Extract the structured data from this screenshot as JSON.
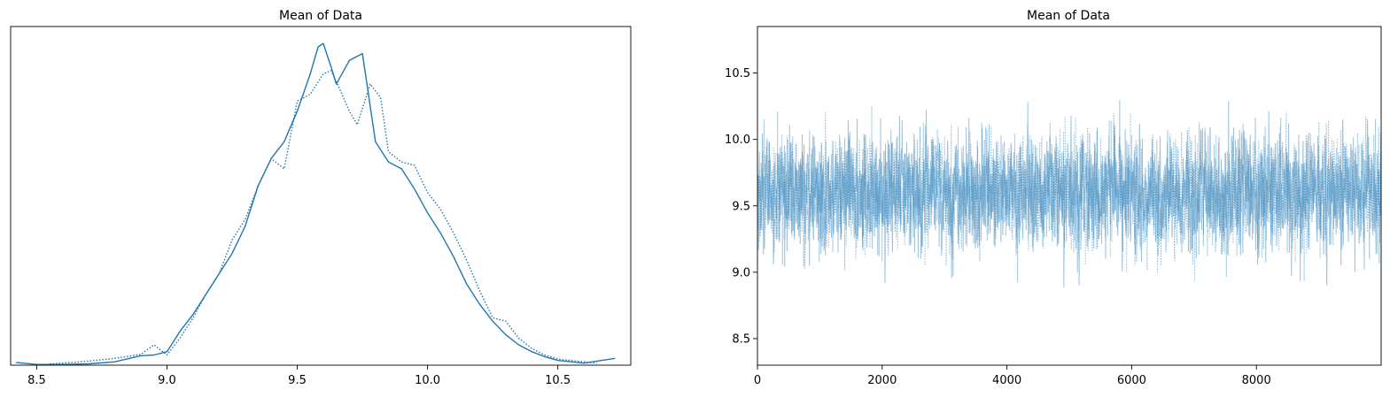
{
  "chart_data": [
    {
      "type": "line",
      "title": "Mean of Data",
      "xlim": [
        8.4,
        10.78
      ],
      "ylim": [
        0,
        1.0
      ],
      "xticks": [
        "8.5",
        "9.0",
        "9.5",
        "10.0",
        "10.5"
      ],
      "xtick_values": [
        8.5,
        9.0,
        9.5,
        10.0,
        10.5
      ],
      "show_yticks": false,
      "grid": false,
      "color": "#1f77b4",
      "series": [
        {
          "linestyle": "solid",
          "x": [
            8.42,
            8.5,
            8.6,
            8.7,
            8.8,
            8.9,
            8.95,
            9.0,
            9.05,
            9.1,
            9.15,
            9.2,
            9.25,
            9.3,
            9.35,
            9.4,
            9.45,
            9.5,
            9.55,
            9.58,
            9.6,
            9.63,
            9.65,
            9.7,
            9.75,
            9.8,
            9.85,
            9.9,
            9.95,
            10.0,
            10.05,
            10.1,
            10.15,
            10.2,
            10.25,
            10.3,
            10.35,
            10.4,
            10.45,
            10.5,
            10.6,
            10.72
          ],
          "y": [
            0.008,
            0.002,
            0.002,
            0.004,
            0.01,
            0.028,
            0.03,
            0.04,
            0.1,
            0.15,
            0.21,
            0.27,
            0.33,
            0.41,
            0.53,
            0.61,
            0.66,
            0.75,
            0.86,
            0.94,
            0.95,
            0.88,
            0.83,
            0.9,
            0.92,
            0.66,
            0.6,
            0.58,
            0.52,
            0.45,
            0.39,
            0.32,
            0.24,
            0.18,
            0.13,
            0.09,
            0.06,
            0.04,
            0.025,
            0.014,
            0.006,
            0.02
          ]
        },
        {
          "linestyle": "dotted",
          "x": [
            8.55,
            8.6,
            8.7,
            8.8,
            8.9,
            8.95,
            9.0,
            9.05,
            9.1,
            9.15,
            9.2,
            9.25,
            9.3,
            9.35,
            9.4,
            9.45,
            9.5,
            9.55,
            9.6,
            9.63,
            9.66,
            9.7,
            9.73,
            9.78,
            9.82,
            9.85,
            9.9,
            9.95,
            10.0,
            10.05,
            10.1,
            10.15,
            10.2,
            10.25,
            10.3,
            10.35,
            10.4,
            10.45,
            10.5,
            10.6,
            10.65
          ],
          "y": [
            0.004,
            0.006,
            0.012,
            0.02,
            0.032,
            0.06,
            0.03,
            0.08,
            0.14,
            0.21,
            0.27,
            0.37,
            0.43,
            0.53,
            0.61,
            0.58,
            0.78,
            0.8,
            0.86,
            0.87,
            0.82,
            0.75,
            0.71,
            0.83,
            0.79,
            0.63,
            0.6,
            0.59,
            0.51,
            0.46,
            0.39,
            0.31,
            0.22,
            0.14,
            0.13,
            0.08,
            0.05,
            0.03,
            0.018,
            0.01,
            0.006
          ]
        }
      ]
    },
    {
      "type": "line",
      "title": "Mean of Data",
      "xlim": [
        0,
        10000
      ],
      "ylim": [
        8.3,
        10.85
      ],
      "xticks": [
        "0",
        "2000",
        "4000",
        "6000",
        "8000"
      ],
      "xtick_values": [
        0,
        2000,
        4000,
        6000,
        8000
      ],
      "yticks": [
        "8.5",
        "9.0",
        "9.5",
        "10.0",
        "10.5"
      ],
      "ytick_values": [
        8.5,
        9.0,
        9.5,
        10.0,
        10.5
      ],
      "grid": false,
      "color": "#1f77b4",
      "series": [
        {
          "linestyle": "solid",
          "n_draws": 10000,
          "mean": 9.6,
          "sd": 0.3
        },
        {
          "linestyle": "dotted",
          "n_draws": 10000,
          "mean": 9.6,
          "sd": 0.3
        }
      ]
    }
  ]
}
